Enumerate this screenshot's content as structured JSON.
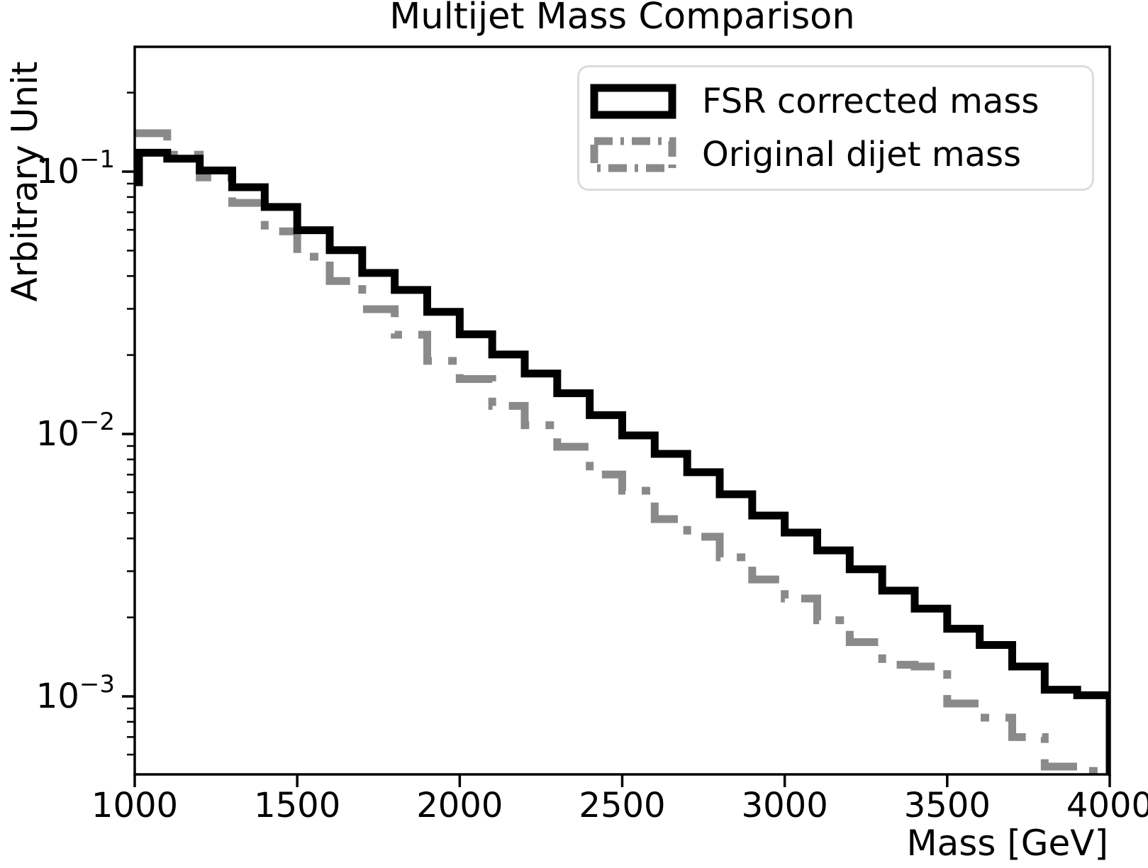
{
  "chart_data": {
    "type": "step-histogram",
    "title": "Multijet Mass Comparison",
    "xlabel": "Mass [GeV]",
    "ylabel": "Arbitrary Unit",
    "x_range": [
      1000,
      4000
    ],
    "y_range_log": [
      0.00049,
      0.3
    ],
    "y_scale": "log",
    "grid": false,
    "legend_position": "upper right",
    "bin_width_gev": 100,
    "bin_edges_gev": [
      1000,
      1100,
      1200,
      1300,
      1400,
      1500,
      1600,
      1700,
      1800,
      1900,
      2000,
      2100,
      2200,
      2300,
      2400,
      2500,
      2600,
      2700,
      2800,
      2900,
      3000,
      3100,
      3200,
      3300,
      3400,
      3500,
      3600,
      3700,
      3800,
      3900,
      4000
    ],
    "x_ticks": [
      1000,
      1500,
      2000,
      2500,
      3000,
      3500,
      4000
    ],
    "y_ticks": [
      {
        "value": 0.1,
        "mantissa": "10",
        "exponent": "−1"
      },
      {
        "value": 0.01,
        "mantissa": "10",
        "exponent": "−2"
      },
      {
        "value": 0.001,
        "mantissa": "10",
        "exponent": "−3"
      }
    ],
    "series": [
      {
        "name": "FSR corrected mass",
        "color": "#000000",
        "line_style": "solid",
        "line_width": 11,
        "underflow_value": 0.088,
        "closes_right": true,
        "values": [
          0.118,
          0.112,
          0.101,
          0.0872,
          0.0733,
          0.0598,
          0.0502,
          0.0411,
          0.0354,
          0.0292,
          0.024,
          0.0201,
          0.017,
          0.0143,
          0.0118,
          0.00988,
          0.0084,
          0.00715,
          0.00589,
          0.00489,
          0.00421,
          0.0036,
          0.00305,
          0.00253,
          0.00216,
          0.00181,
          0.00157,
          0.0013,
          0.00106,
          0.00101
        ]
      },
      {
        "name": "Original dijet mass",
        "color": "#8a8a8a",
        "line_style": "dashdot",
        "line_width": 11,
        "underflow_value": null,
        "closes_right": false,
        "values": [
          0.14,
          0.116,
          0.0951,
          0.076,
          0.0592,
          0.0474,
          0.0383,
          0.0299,
          0.0239,
          0.019,
          0.0162,
          0.0128,
          0.0108,
          0.00894,
          0.00701,
          0.00608,
          0.00474,
          0.00406,
          0.00339,
          0.00279,
          0.00236,
          0.00195,
          0.00161,
          0.00132,
          0.0013,
          0.00094,
          0.00083,
          0.0007,
          0.00054,
          0.00052
        ]
      }
    ]
  }
}
